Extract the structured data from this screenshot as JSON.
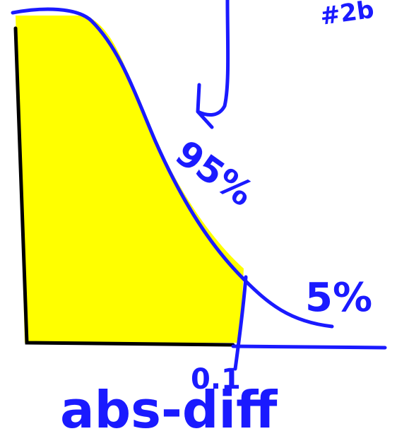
{
  "sketch": {
    "corner_label": "#2b",
    "upper_area_label": "95%",
    "tail_label": "5%",
    "threshold_label": "0.1",
    "axis_label": "abs-diff"
  }
}
